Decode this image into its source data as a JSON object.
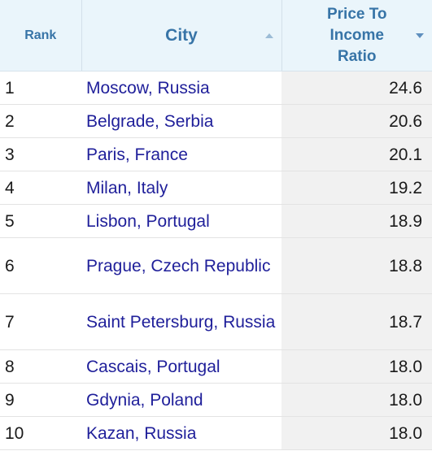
{
  "table": {
    "headers": {
      "rank": "Rank",
      "city": "City",
      "price": "Price To Income Ratio"
    },
    "rows": [
      {
        "rank": "1",
        "city": "Moscow, Russia",
        "value": "24.6"
      },
      {
        "rank": "2",
        "city": "Belgrade, Serbia",
        "value": "20.6"
      },
      {
        "rank": "3",
        "city": "Paris, France",
        "value": "20.1"
      },
      {
        "rank": "4",
        "city": "Milan, Italy",
        "value": "19.2"
      },
      {
        "rank": "5",
        "city": "Lisbon, Portugal",
        "value": "18.9"
      },
      {
        "rank": "6",
        "city": "Prague, Czech Republic",
        "value": "18.8"
      },
      {
        "rank": "7",
        "city": "Saint Petersburg, Russia",
        "value": "18.7"
      },
      {
        "rank": "8",
        "city": "Cascais, Portugal",
        "value": "18.0"
      },
      {
        "rank": "9",
        "city": "Gdynia, Poland",
        "value": "18.0"
      },
      {
        "rank": "10",
        "city": "Kazan, Russia",
        "value": "18.0"
      }
    ]
  },
  "icons": {
    "city_sort": "sort-ascending-icon",
    "price_sort": "sort-descending-icon"
  },
  "colors": {
    "header_bg": "#eaf5fb",
    "header_text": "#3774a7",
    "link": "#1f1f9a",
    "sorted_column_bg": "#f1f1f1"
  }
}
